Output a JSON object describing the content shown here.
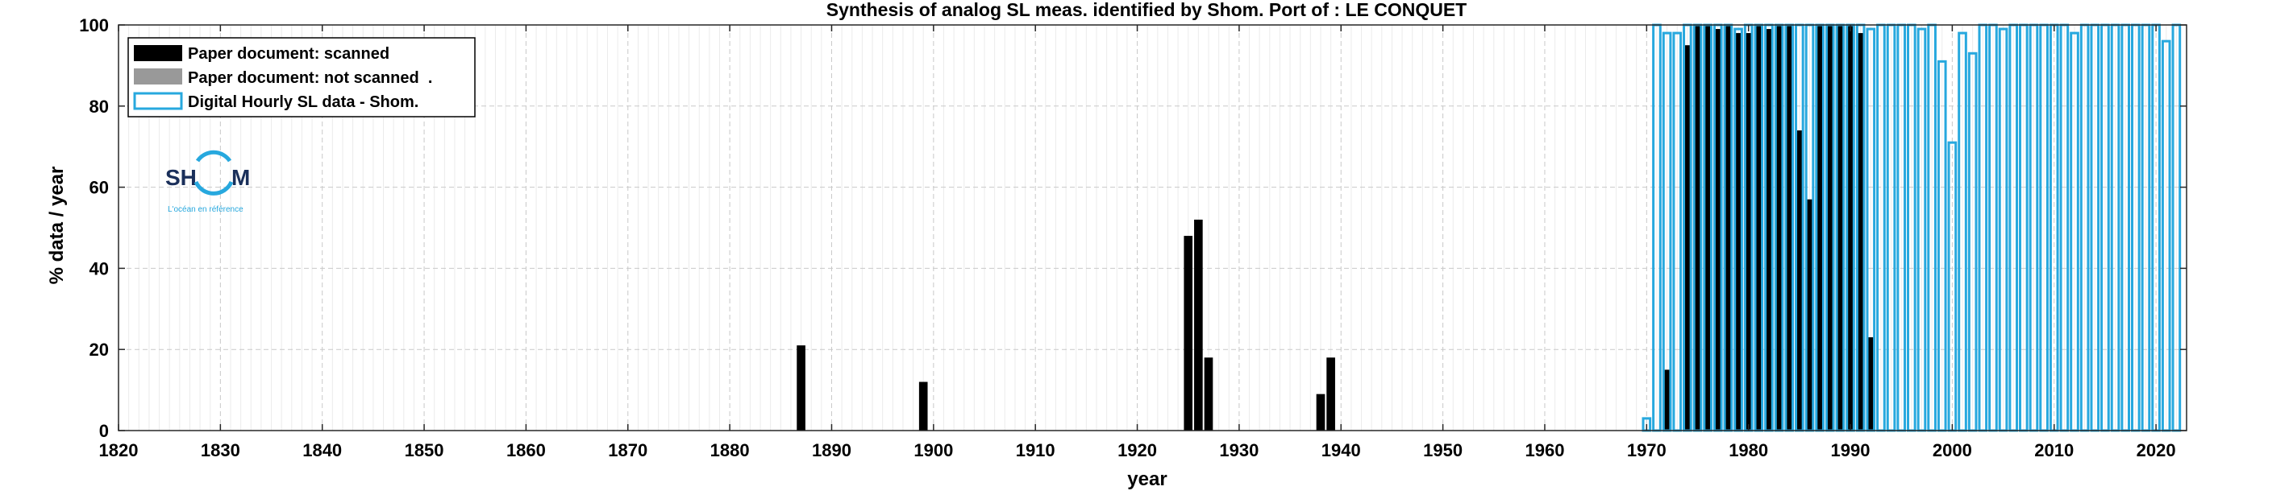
{
  "chart_data": {
    "type": "bar",
    "title": "Synthesis of analog SL meas. identified by Shom. Port of : LE CONQUET",
    "xlabel": "year",
    "ylabel": "% data / year",
    "xlim": [
      1820,
      2023
    ],
    "ylim": [
      0,
      100
    ],
    "xticks": [
      1820,
      1830,
      1840,
      1850,
      1860,
      1870,
      1880,
      1890,
      1900,
      1910,
      1920,
      1930,
      1940,
      1950,
      1960,
      1970,
      1980,
      1990,
      2000,
      2010,
      2020
    ],
    "yticks": [
      0,
      20,
      40,
      60,
      80,
      100
    ],
    "grid": true,
    "legend_position": "top-left",
    "series": [
      {
        "name": "Paper document: scanned",
        "style": "filled",
        "color": "#000000",
        "points": [
          {
            "x": 1887,
            "y": 21
          },
          {
            "x": 1899,
            "y": 12
          },
          {
            "x": 1925,
            "y": 48
          },
          {
            "x": 1926,
            "y": 52
          },
          {
            "x": 1927,
            "y": 18
          },
          {
            "x": 1938,
            "y": 9
          },
          {
            "x": 1939,
            "y": 18
          },
          {
            "x": 1972,
            "y": 15
          },
          {
            "x": 1974,
            "y": 95
          },
          {
            "x": 1975,
            "y": 100
          },
          {
            "x": 1976,
            "y": 100
          },
          {
            "x": 1977,
            "y": 99
          },
          {
            "x": 1978,
            "y": 100
          },
          {
            "x": 1979,
            "y": 98
          },
          {
            "x": 1980,
            "y": 98
          },
          {
            "x": 1981,
            "y": 100
          },
          {
            "x": 1982,
            "y": 99
          },
          {
            "x": 1983,
            "y": 100
          },
          {
            "x": 1984,
            "y": 100
          },
          {
            "x": 1985,
            "y": 74
          },
          {
            "x": 1986,
            "y": 57
          },
          {
            "x": 1987,
            "y": 100
          },
          {
            "x": 1988,
            "y": 100
          },
          {
            "x": 1989,
            "y": 100
          },
          {
            "x": 1990,
            "y": 100
          },
          {
            "x": 1991,
            "y": 98
          },
          {
            "x": 1992,
            "y": 23
          }
        ]
      },
      {
        "name": "Paper document: not scanned  .",
        "style": "filled",
        "color": "#999999",
        "points": []
      },
      {
        "name": "Digital Hourly SL data - Shom.",
        "style": "outline",
        "color": "#27a8de",
        "points": [
          {
            "x": 1970,
            "y": 3
          },
          {
            "x": 1971,
            "y": 100
          },
          {
            "x": 1972,
            "y": 98
          },
          {
            "x": 1973,
            "y": 98
          },
          {
            "x": 1974,
            "y": 100
          },
          {
            "x": 1975,
            "y": 100
          },
          {
            "x": 1976,
            "y": 100
          },
          {
            "x": 1977,
            "y": 100
          },
          {
            "x": 1978,
            "y": 100
          },
          {
            "x": 1979,
            "y": 99
          },
          {
            "x": 1980,
            "y": 100
          },
          {
            "x": 1981,
            "y": 100
          },
          {
            "x": 1982,
            "y": 100
          },
          {
            "x": 1983,
            "y": 100
          },
          {
            "x": 1984,
            "y": 100
          },
          {
            "x": 1985,
            "y": 100
          },
          {
            "x": 1986,
            "y": 100
          },
          {
            "x": 1987,
            "y": 100
          },
          {
            "x": 1988,
            "y": 100
          },
          {
            "x": 1989,
            "y": 100
          },
          {
            "x": 1990,
            "y": 100
          },
          {
            "x": 1991,
            "y": 100
          },
          {
            "x": 1992,
            "y": 99
          },
          {
            "x": 1993,
            "y": 100
          },
          {
            "x": 1994,
            "y": 100
          },
          {
            "x": 1995,
            "y": 100
          },
          {
            "x": 1996,
            "y": 100
          },
          {
            "x": 1997,
            "y": 99
          },
          {
            "x": 1998,
            "y": 100
          },
          {
            "x": 1999,
            "y": 91
          },
          {
            "x": 2000,
            "y": 71
          },
          {
            "x": 2001,
            "y": 98
          },
          {
            "x": 2002,
            "y": 93
          },
          {
            "x": 2003,
            "y": 100
          },
          {
            "x": 2004,
            "y": 100
          },
          {
            "x": 2005,
            "y": 99
          },
          {
            "x": 2006,
            "y": 100
          },
          {
            "x": 2007,
            "y": 100
          },
          {
            "x": 2008,
            "y": 100
          },
          {
            "x": 2009,
            "y": 100
          },
          {
            "x": 2010,
            "y": 100
          },
          {
            "x": 2011,
            "y": 100
          },
          {
            "x": 2012,
            "y": 98
          },
          {
            "x": 2013,
            "y": 100
          },
          {
            "x": 2014,
            "y": 100
          },
          {
            "x": 2015,
            "y": 100
          },
          {
            "x": 2016,
            "y": 100
          },
          {
            "x": 2017,
            "y": 100
          },
          {
            "x": 2018,
            "y": 100
          },
          {
            "x": 2019,
            "y": 100
          },
          {
            "x": 2020,
            "y": 100
          },
          {
            "x": 2021,
            "y": 96
          },
          {
            "x": 2022,
            "y": 100
          }
        ]
      }
    ]
  },
  "logo": {
    "text_left": "SH",
    "text_right": "M",
    "tagline": "L'océan en référence",
    "ring_color": "#27a8de",
    "text_color": "#1a2f5a"
  }
}
